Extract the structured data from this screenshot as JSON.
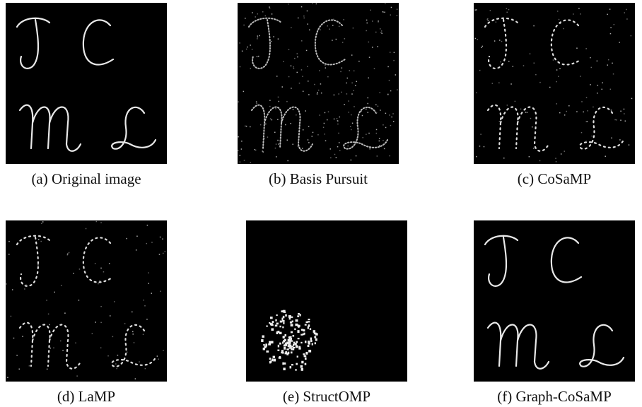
{
  "panels": [
    {
      "caption": "(a) Original image"
    },
    {
      "caption": "(b) Basis Pursuit"
    },
    {
      "caption": "(c) CoSaMP"
    },
    {
      "caption": "(d) LaMP"
    },
    {
      "caption": "(e) StructOMP"
    },
    {
      "caption": "(f) Graph-CoSaMP"
    }
  ]
}
